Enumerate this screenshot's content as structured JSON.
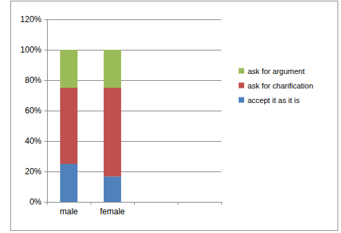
{
  "chart_data": {
    "type": "bar",
    "categories": [
      "male",
      "female",
      null,
      null
    ],
    "series": [
      {
        "name": "accept it as it is",
        "color": "#4F81BD",
        "values": [
          25,
          16.7,
          null,
          null
        ]
      },
      {
        "name": "ask for charification",
        "color": "#C0504D",
        "values": [
          50,
          58.3,
          null,
          null
        ]
      },
      {
        "name": "ask for argument",
        "color": "#9BBB59",
        "values": [
          25,
          25,
          null,
          null
        ]
      }
    ],
    "ylim": [
      0,
      120
    ],
    "yticks": [
      {
        "value": 0,
        "label": "0%"
      },
      {
        "value": 20,
        "label": "20%"
      },
      {
        "value": 40,
        "label": "40%"
      },
      {
        "value": 60,
        "label": "60%"
      },
      {
        "value": 80,
        "label": "80%"
      },
      {
        "value": 100,
        "label": "100%"
      },
      {
        "value": 120,
        "label": "120%"
      }
    ],
    "grid": true,
    "stacked": true,
    "legend": "right"
  }
}
